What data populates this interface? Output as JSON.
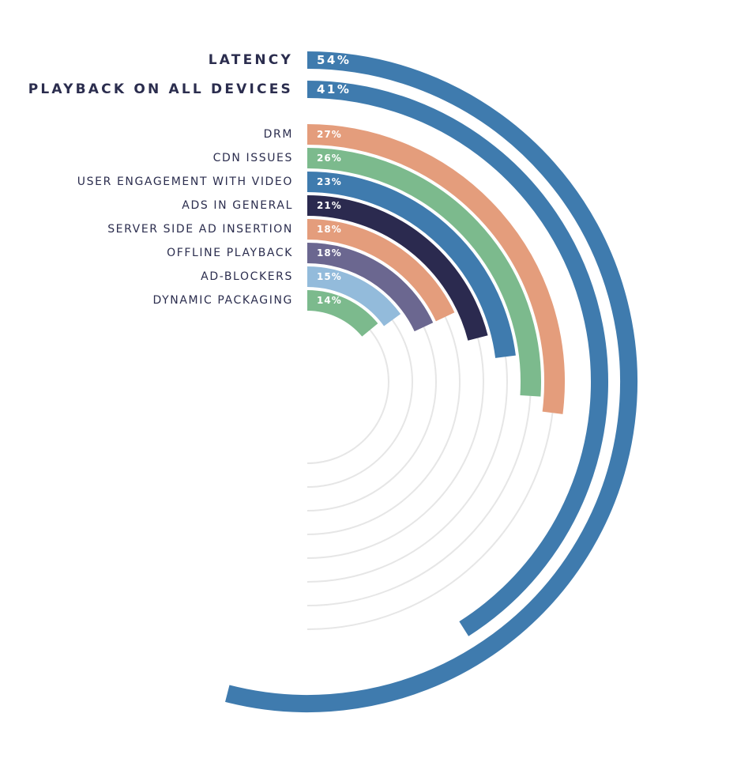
{
  "chart_data": {
    "type": "radial-bar",
    "max_value": 100,
    "series": [
      {
        "label": "LATENCY",
        "value": 54,
        "value_label": "54%",
        "color": "#3f7bae",
        "emphasis": true
      },
      {
        "label": "PLAYBACK ON ALL DEVICES",
        "value": 41,
        "value_label": "41%",
        "color": "#3f7bae",
        "emphasis": true
      },
      {
        "label": "DRM",
        "value": 27,
        "value_label": "27%",
        "color": "#e49d7c",
        "emphasis": false
      },
      {
        "label": "CDN ISSUES",
        "value": 26,
        "value_label": "26%",
        "color": "#7cba8d",
        "emphasis": false
      },
      {
        "label": "USER ENGAGEMENT WITH VIDEO",
        "value": 23,
        "value_label": "23%",
        "color": "#3f7bae",
        "emphasis": false
      },
      {
        "label": "ADS IN GENERAL",
        "value": 21,
        "value_label": "21%",
        "color": "#2b2a4f",
        "emphasis": false
      },
      {
        "label": "SERVER SIDE AD INSERTION",
        "value": 18,
        "value_label": "18%",
        "color": "#e49d7c",
        "emphasis": false
      },
      {
        "label": "OFFLINE PLAYBACK",
        "value": 18,
        "value_label": "18%",
        "color": "#6b6790",
        "emphasis": false
      },
      {
        "label": "AD-BLOCKERS",
        "value": 15,
        "value_label": "15%",
        "color": "#93bbdb",
        "emphasis": false
      },
      {
        "label": "DYNAMIC PACKAGING",
        "value": 14,
        "value_label": "14%",
        "color": "#7cba8d",
        "emphasis": false
      }
    ],
    "track_color": "#e6e6e6",
    "label_color": "#2b2d4e",
    "grid": true,
    "legend": "none"
  }
}
